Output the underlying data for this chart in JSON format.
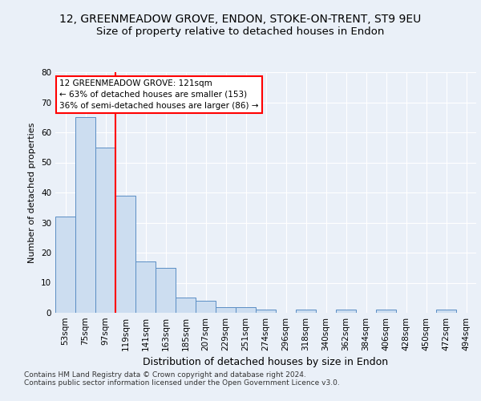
{
  "title1": "12, GREENMEADOW GROVE, ENDON, STOKE-ON-TRENT, ST9 9EU",
  "title2": "Size of property relative to detached houses in Endon",
  "xlabel": "Distribution of detached houses by size in Endon",
  "ylabel": "Number of detached properties",
  "categories": [
    "53sqm",
    "75sqm",
    "97sqm",
    "119sqm",
    "141sqm",
    "163sqm",
    "185sqm",
    "207sqm",
    "229sqm",
    "251sqm",
    "274sqm",
    "296sqm",
    "318sqm",
    "340sqm",
    "362sqm",
    "384sqm",
    "406sqm",
    "428sqm",
    "450sqm",
    "472sqm",
    "494sqm"
  ],
  "values": [
    32,
    65,
    55,
    39,
    17,
    15,
    5,
    4,
    2,
    2,
    1,
    0,
    1,
    0,
    1,
    0,
    1,
    0,
    0,
    1,
    0
  ],
  "bar_color": "#ccddf0",
  "bar_edge_color": "#5b8ec4",
  "annotation_text1": "12 GREENMEADOW GROVE: 121sqm",
  "annotation_text2": "← 63% of detached houses are smaller (153)",
  "annotation_text3": "36% of semi-detached houses are larger (86) →",
  "annotation_box_color": "white",
  "annotation_box_edge": "red",
  "vline_color": "red",
  "ylim": [
    0,
    80
  ],
  "yticks": [
    0,
    10,
    20,
    30,
    40,
    50,
    60,
    70,
    80
  ],
  "footer": "Contains HM Land Registry data © Crown copyright and database right 2024.\nContains public sector information licensed under the Open Government Licence v3.0.",
  "background_color": "#eaf0f8",
  "plot_background": "#eaf0f8",
  "grid_color": "white",
  "title1_fontsize": 10,
  "title2_fontsize": 9.5,
  "xlabel_fontsize": 9,
  "ylabel_fontsize": 8,
  "tick_fontsize": 7.5,
  "footer_fontsize": 6.5
}
